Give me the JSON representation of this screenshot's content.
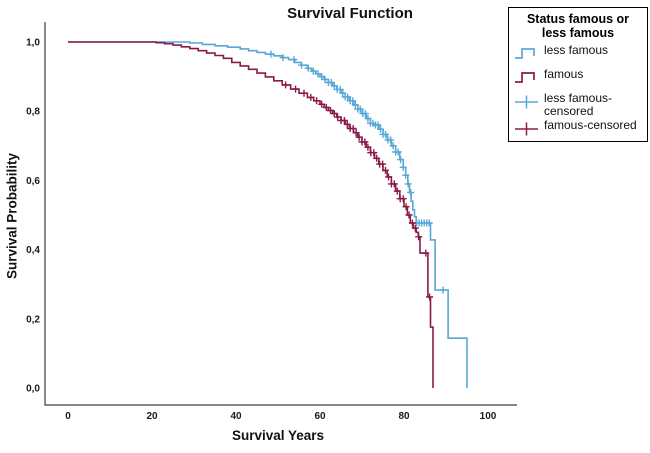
{
  "chart_data": {
    "type": "line",
    "subtype": "kaplan-meier-survival-step",
    "title": "Survival Function",
    "xlabel": "Survival Years",
    "ylabel": "Survival Probability",
    "xlim": [
      -5,
      105
    ],
    "ylim": [
      0.0,
      1.0
    ],
    "grid": false,
    "decimal_separator": ",",
    "x_ticks": {
      "values": [
        0,
        20,
        40,
        60,
        80,
        100
      ],
      "labels": [
        "0",
        "20",
        "40",
        "60",
        "80",
        "100"
      ]
    },
    "y_ticks": {
      "values": [
        0.0,
        0.2,
        0.4,
        0.6,
        0.8,
        1.0
      ],
      "labels": [
        "0,0",
        "0,2",
        "0,4",
        "0,6",
        "0,8",
        "1,0"
      ]
    },
    "series": [
      {
        "name": "less famous",
        "color": "#58A8D7",
        "points": [
          [
            0,
            1.0
          ],
          [
            29,
            0.997
          ],
          [
            32,
            0.993
          ],
          [
            35,
            0.989
          ],
          [
            38,
            0.985
          ],
          [
            41,
            0.98
          ],
          [
            43,
            0.975
          ],
          [
            45,
            0.97
          ],
          [
            47,
            0.965
          ],
          [
            49,
            0.96
          ],
          [
            51,
            0.955
          ],
          [
            52.5,
            0.949
          ],
          [
            54,
            0.941
          ],
          [
            55.5,
            0.933
          ],
          [
            57,
            0.924
          ],
          [
            58,
            0.916
          ],
          [
            59,
            0.908
          ],
          [
            60,
            0.9
          ],
          [
            61,
            0.892
          ],
          [
            62,
            0.883
          ],
          [
            63,
            0.873
          ],
          [
            64,
            0.863
          ],
          [
            65,
            0.852
          ],
          [
            66,
            0.841
          ],
          [
            67,
            0.83
          ],
          [
            68,
            0.818
          ],
          [
            69,
            0.806
          ],
          [
            70,
            0.793
          ],
          [
            71,
            0.779
          ],
          [
            72,
            0.765
          ],
          [
            73,
            0.76
          ],
          [
            74,
            0.748
          ],
          [
            75,
            0.733
          ],
          [
            76,
            0.717
          ],
          [
            77,
            0.7
          ],
          [
            78,
            0.682
          ],
          [
            79,
            0.66
          ],
          [
            79.8,
            0.638
          ],
          [
            80.4,
            0.615
          ],
          [
            80.9,
            0.59
          ],
          [
            81.3,
            0.565
          ],
          [
            81.7,
            0.54
          ],
          [
            82.1,
            0.515
          ],
          [
            82.5,
            0.495
          ],
          [
            82.9,
            0.477
          ],
          [
            86.3,
            0.428
          ],
          [
            87.4,
            0.283
          ],
          [
            90.5,
            0.144
          ],
          [
            95,
            0.0
          ]
        ],
        "censored_years": [
          48.3,
          51.2,
          53.8,
          55.6,
          57.2,
          58.4,
          59.5,
          60.4,
          61.2,
          62.0,
          62.7,
          63.4,
          64.1,
          64.8,
          65.4,
          66.0,
          66.6,
          67.2,
          67.8,
          68.4,
          69.0,
          69.6,
          70.2,
          70.8,
          71.4,
          72.0,
          72.6,
          73.2,
          73.8,
          74.4,
          75.0,
          75.6,
          76.2,
          76.8,
          77.4,
          78.0,
          78.6,
          79.2,
          79.8,
          80.4,
          81.0,
          81.6,
          83.0,
          83.6,
          84.2,
          84.8,
          85.4,
          86.0,
          89.3
        ]
      },
      {
        "name": "famous",
        "color": "#8B1A4B",
        "points": [
          [
            0,
            1.0
          ],
          [
            21,
            0.998
          ],
          [
            23,
            0.995
          ],
          [
            25,
            0.991
          ],
          [
            27,
            0.986
          ],
          [
            29,
            0.981
          ],
          [
            31,
            0.975
          ],
          [
            33,
            0.968
          ],
          [
            35,
            0.961
          ],
          [
            37,
            0.953
          ],
          [
            39,
            0.941
          ],
          [
            41,
            0.931
          ],
          [
            43,
            0.921
          ],
          [
            45,
            0.91
          ],
          [
            47,
            0.899
          ],
          [
            49,
            0.888
          ],
          [
            51,
            0.876
          ],
          [
            53,
            0.864
          ],
          [
            55,
            0.852
          ],
          [
            57,
            0.84
          ],
          [
            58.5,
            0.83
          ],
          [
            60,
            0.82
          ],
          [
            61,
            0.811
          ],
          [
            62,
            0.802
          ],
          [
            63,
            0.793
          ],
          [
            64,
            0.783
          ],
          [
            65,
            0.773
          ],
          [
            66,
            0.762
          ],
          [
            67,
            0.75
          ],
          [
            68,
            0.738
          ],
          [
            69,
            0.725
          ],
          [
            70,
            0.711
          ],
          [
            71,
            0.696
          ],
          [
            72,
            0.68
          ],
          [
            73,
            0.664
          ],
          [
            74,
            0.647
          ],
          [
            75,
            0.629
          ],
          [
            76,
            0.61
          ],
          [
            77,
            0.59
          ],
          [
            78,
            0.569
          ],
          [
            79,
            0.547
          ],
          [
            80,
            0.524
          ],
          [
            80.8,
            0.5
          ],
          [
            81.5,
            0.477
          ],
          [
            82.2,
            0.462
          ],
          [
            82.9,
            0.45
          ],
          [
            83.4,
            0.437
          ],
          [
            83.8,
            0.39
          ],
          [
            85.7,
            0.263
          ],
          [
            86.3,
            0.176
          ],
          [
            86.9,
            0.0
          ]
        ],
        "censored_years": [
          51.8,
          54.2,
          56.2,
          57.8,
          59.2,
          60.4,
          61.5,
          62.5,
          63.4,
          64.2,
          65.0,
          65.8,
          66.5,
          67.2,
          67.9,
          68.6,
          69.3,
          70.0,
          70.7,
          71.4,
          72.1,
          72.8,
          73.5,
          74.2,
          74.9,
          75.6,
          76.3,
          77.0,
          77.7,
          78.4,
          79.1,
          79.8,
          80.5,
          81.2,
          82.0,
          82.7,
          83.5,
          85.2,
          86.1
        ]
      }
    ],
    "legend_position": "top-right",
    "axis_color": "#3d3d3d"
  },
  "legend": {
    "title": "Status famous or less famous",
    "items": [
      {
        "label": "less famous",
        "icon": "step-line-icon",
        "color": "#58A8D7"
      },
      {
        "label": "famous",
        "icon": "step-line-icon",
        "color": "#8B1A4B"
      },
      {
        "label": "less famous-censored",
        "icon": "plus-line-icon",
        "color": "#58A8D7"
      },
      {
        "label": "famous-censored",
        "icon": "plus-line-icon",
        "color": "#8B1A4B"
      }
    ]
  }
}
